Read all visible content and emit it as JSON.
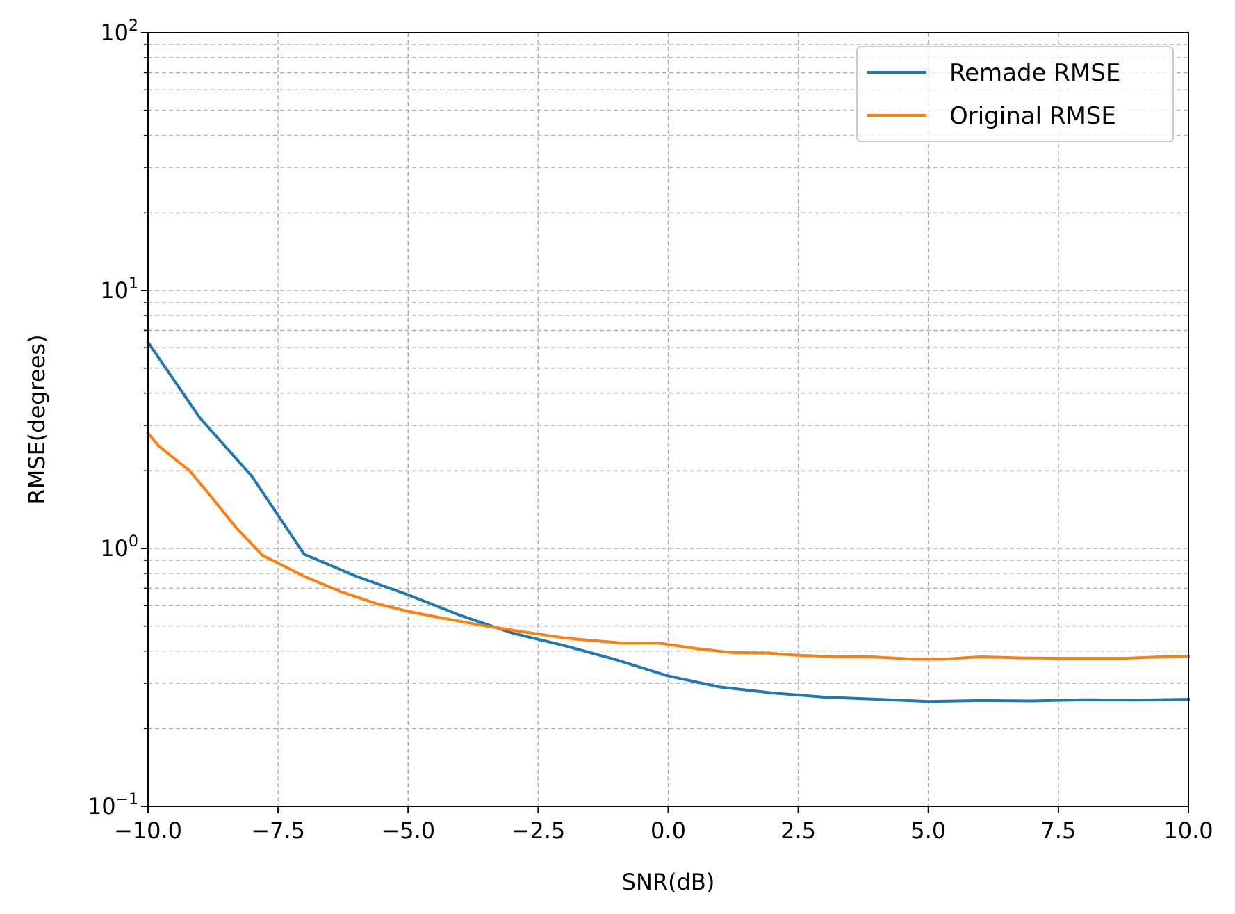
{
  "chart_data": {
    "type": "line",
    "title": "",
    "xlabel": "SNR(dB)",
    "ylabel": "RMSE(degrees)",
    "xlim": [
      -10.0,
      10.0
    ],
    "ylim": [
      0.1,
      100
    ],
    "yscale": "log",
    "grid": true,
    "legend_position": "top-right",
    "x_ticks": [
      -10.0,
      -7.5,
      -5.0,
      -2.5,
      0.0,
      2.5,
      5.0,
      7.5,
      10.0
    ],
    "x_tick_labels": [
      "−10.0",
      "−7.5",
      "−5.0",
      "−2.5",
      "0.0",
      "2.5",
      "5.0",
      "7.5",
      "10.0"
    ],
    "y_ticks": [
      0.1,
      1,
      10,
      100
    ],
    "y_tick_labels": [
      {
        "base": "10",
        "exp": "−1"
      },
      {
        "base": "10",
        "exp": "0"
      },
      {
        "base": "10",
        "exp": "1"
      },
      {
        "base": "10",
        "exp": "2"
      }
    ],
    "series": [
      {
        "name": "Remade RMSE",
        "color": "#1f77b4",
        "x": [
          -10,
          -9,
          -8,
          -7,
          -6,
          -5,
          -4,
          -3,
          -2,
          -1,
          0,
          1,
          2,
          3,
          4,
          5,
          6,
          7,
          8,
          9,
          10
        ],
        "y": [
          6.3,
          3.2,
          1.9,
          0.95,
          0.78,
          0.66,
          0.55,
          0.47,
          0.42,
          0.37,
          0.32,
          0.29,
          0.275,
          0.265,
          0.26,
          0.255,
          0.257,
          0.256,
          0.259,
          0.258,
          0.26
        ]
      },
      {
        "name": "Original RMSE",
        "color": "#ff7f0e",
        "x": [
          -10,
          -9.8,
          -9.2,
          -8.8,
          -8.3,
          -7.8,
          -7,
          -6.3,
          -5.6,
          -5,
          -4.3,
          -3.5,
          -2.8,
          -2,
          -1.5,
          -0.9,
          -0.2,
          0.5,
          1.2,
          1.9,
          2.5,
          3.3,
          3.9,
          4.7,
          5.3,
          6,
          6.8,
          7.5,
          8.2,
          8.8,
          9.5,
          10
        ],
        "y": [
          2.8,
          2.5,
          2.0,
          1.6,
          1.2,
          0.94,
          0.78,
          0.68,
          0.61,
          0.57,
          0.535,
          0.5,
          0.475,
          0.45,
          0.44,
          0.43,
          0.43,
          0.41,
          0.395,
          0.393,
          0.385,
          0.38,
          0.38,
          0.372,
          0.372,
          0.38,
          0.376,
          0.375,
          0.375,
          0.375,
          0.38,
          0.382
        ]
      }
    ]
  }
}
